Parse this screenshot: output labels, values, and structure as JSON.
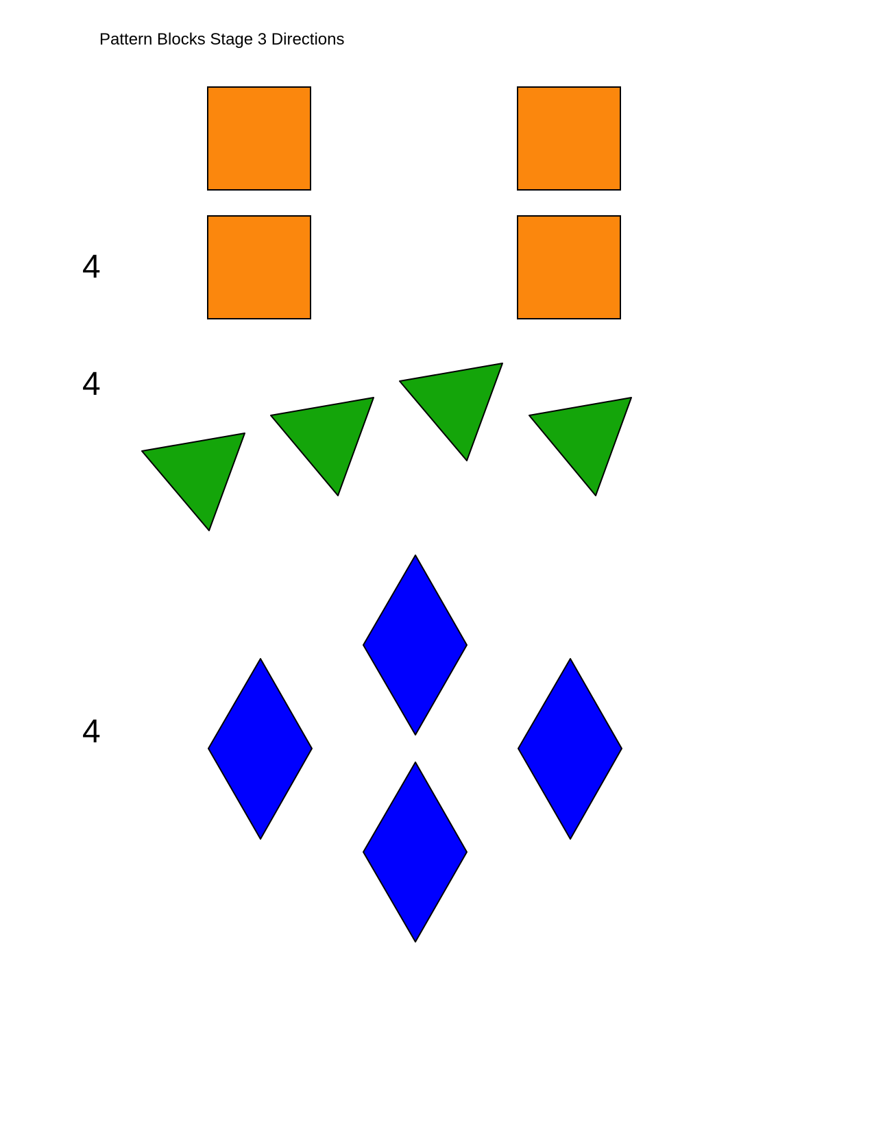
{
  "page": {
    "title": "Pattern Blocks Stage 3 Directions"
  },
  "groups": [
    {
      "shape": "square",
      "count_label": "4",
      "color": "#fb870d",
      "pieces": 4
    },
    {
      "shape": "triangle",
      "count_label": "4",
      "color": "#14a50a",
      "pieces": 4
    },
    {
      "shape": "rhombus",
      "count_label": "4",
      "color": "#0000ff",
      "pieces": 4
    }
  ]
}
